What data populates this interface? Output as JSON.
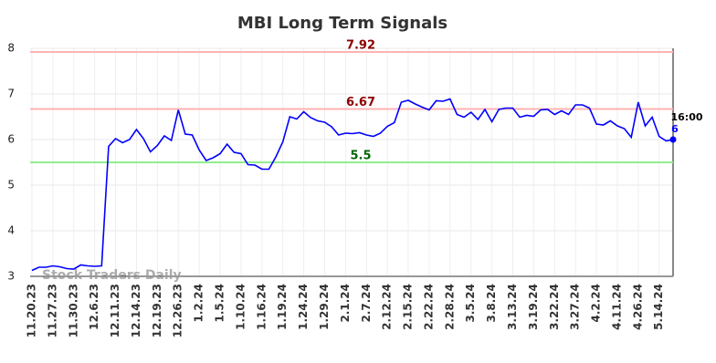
{
  "chart_data": {
    "type": "line",
    "title": "MBI Long Term Signals",
    "watermark": "Stock Traders Daily",
    "categories": [
      "11.20.23",
      null,
      null,
      "11.27.23",
      null,
      null,
      "11.30.23",
      null,
      null,
      "12.6.23",
      null,
      null,
      "12.11.23",
      null,
      null,
      "12.14.23",
      null,
      null,
      "12.19.23",
      null,
      null,
      "12.26.23",
      null,
      null,
      "1.2.24",
      null,
      null,
      "1.5.24",
      null,
      null,
      "1.10.24",
      null,
      null,
      "1.16.24",
      null,
      null,
      "1.19.24",
      null,
      null,
      "1.24.24",
      null,
      null,
      "1.29.24",
      null,
      null,
      "2.1.24",
      null,
      null,
      "2.7.24",
      null,
      null,
      "2.12.24",
      null,
      null,
      "2.15.24",
      null,
      null,
      "2.22.24",
      null,
      null,
      "2.28.24",
      null,
      null,
      "3.5.24",
      null,
      null,
      "3.8.24",
      null,
      null,
      "3.13.24",
      null,
      null,
      "3.19.24",
      null,
      null,
      "3.22.24",
      null,
      null,
      "3.27.24",
      null,
      null,
      "4.2.24",
      null,
      null,
      "4.11.24",
      null,
      null,
      "4.26.24",
      null,
      null,
      "5.14.24",
      null,
      null
    ],
    "values": [
      3.13,
      3.2,
      3.2,
      3.23,
      3.21,
      3.17,
      3.16,
      3.25,
      3.23,
      3.22,
      3.23,
      5.85,
      6.02,
      5.93,
      6.0,
      6.22,
      6.02,
      5.73,
      5.87,
      6.08,
      5.98,
      6.65,
      6.12,
      6.1,
      5.77,
      5.54,
      5.6,
      5.69,
      5.9,
      5.72,
      5.69,
      5.45,
      5.44,
      5.35,
      5.35,
      5.62,
      5.95,
      6.5,
      6.45,
      6.61,
      6.48,
      6.41,
      6.38,
      6.28,
      6.1,
      6.14,
      6.13,
      6.15,
      6.1,
      6.07,
      6.14,
      6.29,
      6.37,
      6.82,
      6.86,
      6.78,
      6.71,
      6.65,
      6.85,
      6.84,
      6.89,
      6.55,
      6.49,
      6.6,
      6.44,
      6.66,
      6.39,
      6.66,
      6.69,
      6.69,
      6.49,
      6.53,
      6.51,
      6.65,
      6.66,
      6.55,
      6.63,
      6.55,
      6.76,
      6.76,
      6.69,
      6.34,
      6.32,
      6.41,
      6.3,
      6.24,
      6.05,
      6.82,
      6.3,
      6.49,
      6.07,
      5.97,
      6
    ],
    "color": "#0000ff",
    "last_time": "16:00",
    "hlines": [
      {
        "value": 7.92,
        "color": "#ffb3b3",
        "label_color": "#8b0000"
      },
      {
        "value": 6.67,
        "color": "#ffb3b3",
        "label_color": "#8b0000"
      },
      {
        "value": 5.5,
        "color": "#90ee90",
        "label_color": "#006400"
      }
    ],
    "ylim": [
      3,
      8
    ],
    "yticks": [
      3,
      4,
      5,
      6,
      7,
      8
    ],
    "grid": true
  }
}
